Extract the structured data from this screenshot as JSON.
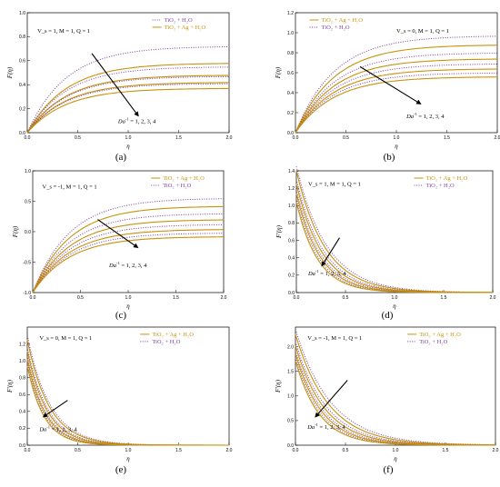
{
  "colors": {
    "solid": "#c8920a",
    "dotted": "#7c3fa0",
    "arrow": "#000000"
  },
  "chart_data": [
    {
      "type": "line",
      "panel_label": "(a)",
      "xlabel": "η",
      "ylabel": "F(η)",
      "xlim": [
        0,
        2
      ],
      "ylim": [
        0,
        1
      ],
      "xticks": [
        "0.0",
        "0.5",
        "1.0",
        "1.5",
        "2.0"
      ],
      "yticks": [
        "0.0",
        "0.2",
        "0.4",
        "0.6",
        "0.8",
        "1.0"
      ],
      "params": "V_s = 1, M = 1, Q = 1",
      "arrow_label": "Da^-1 = 1, 2, 3, 4",
      "legend": [
        "TiO₂ + H₂O",
        "TiO₂ + Ag + H₂O"
      ],
      "legend_pos": "top-right",
      "curve_kind": "increasing",
      "series": [
        {
          "style": "dotted",
          "f0": 0,
          "finf": 0.72
        },
        {
          "style": "solid",
          "f0": 0,
          "finf": 0.58
        },
        {
          "style": "dotted",
          "f0": 0,
          "finf": 0.55
        },
        {
          "style": "solid",
          "f0": 0,
          "finf": 0.48
        },
        {
          "style": "dotted",
          "f0": 0,
          "finf": 0.47
        },
        {
          "style": "solid",
          "f0": 0,
          "finf": 0.42
        },
        {
          "style": "dotted",
          "f0": 0,
          "finf": 0.41
        },
        {
          "style": "solid",
          "f0": 0,
          "finf": 0.37
        }
      ]
    },
    {
      "type": "line",
      "panel_label": "(b)",
      "xlabel": "η",
      "ylabel": "F(η)",
      "xlim": [
        0,
        2
      ],
      "ylim": [
        0,
        1.2
      ],
      "xticks": [
        "0.0",
        "0.5",
        "1.0",
        "1.5",
        "2.0"
      ],
      "yticks": [
        "0.0",
        "0.2",
        "0.4",
        "0.6",
        "0.8",
        "1.0",
        "1.2"
      ],
      "params": "V_s = 0, M = 1, Q = 1",
      "arrow_label": "Da^-1 = 1, 2, 3, 4",
      "legend": [
        "TiO₂ + Ag + H₂O",
        "TiO₂ + H₂O"
      ],
      "legend_pos": "top-left",
      "curve_kind": "increasing",
      "series": [
        {
          "style": "dotted",
          "f0": 0,
          "finf": 0.97
        },
        {
          "style": "solid",
          "f0": 0,
          "finf": 0.88
        },
        {
          "style": "dotted",
          "f0": 0,
          "finf": 0.8
        },
        {
          "style": "solid",
          "f0": 0,
          "finf": 0.74
        },
        {
          "style": "dotted",
          "f0": 0,
          "finf": 0.69
        },
        {
          "style": "solid",
          "f0": 0,
          "finf": 0.64
        },
        {
          "style": "dotted",
          "f0": 0,
          "finf": 0.6
        },
        {
          "style": "solid",
          "f0": 0,
          "finf": 0.56
        }
      ]
    },
    {
      "type": "line",
      "panel_label": "(c)",
      "xlabel": "η",
      "ylabel": "F(η)",
      "xlim": [
        0,
        2
      ],
      "ylim": [
        -1,
        1
      ],
      "xticks": [
        "0.0",
        "0.5",
        "1.0",
        "1.5",
        "2.0"
      ],
      "yticks": [
        "-1.0",
        "-0.5",
        "0.0",
        "0.5",
        "1.0"
      ],
      "params": "V_s = -1, M = 1, Q = 1",
      "arrow_label": "Da^-1 = 1, 2, 3, 4",
      "legend": [
        "TiO₂ + Ag + H₂O",
        "TiO₂ + H₂O"
      ],
      "legend_pos": "top-right",
      "curve_kind": "increasing",
      "series": [
        {
          "style": "dotted",
          "f0": -1,
          "finf": 0.55
        },
        {
          "style": "solid",
          "f0": -1,
          "finf": 0.42
        },
        {
          "style": "dotted",
          "f0": -1,
          "finf": 0.3
        },
        {
          "style": "solid",
          "f0": -1,
          "finf": 0.2
        },
        {
          "style": "dotted",
          "f0": -1,
          "finf": 0.12
        },
        {
          "style": "solid",
          "f0": -1,
          "finf": 0.04
        },
        {
          "style": "dotted",
          "f0": -1,
          "finf": -0.02
        },
        {
          "style": "solid",
          "f0": -1,
          "finf": -0.08
        }
      ]
    },
    {
      "type": "line",
      "panel_label": "(d)",
      "xlabel": "η",
      "ylabel": "F′(η)",
      "xlim": [
        0,
        2
      ],
      "ylim": [
        0,
        1.4
      ],
      "xticks": [
        "0.0",
        "0.5",
        "1.0",
        "1.5",
        "2.0"
      ],
      "yticks": [
        "0.0",
        "0.2",
        "0.4",
        "0.6",
        "0.8",
        "1.0",
        "1.2",
        "1.4"
      ],
      "params": "V_s = 1, M = 1, Q = 1",
      "arrow_label": "Da^-1 = 1, 2, 3, 4",
      "legend": [
        "TiO₂ + Ag + H₂O",
        "TiO₂ + H₂O"
      ],
      "legend_pos": "top-right",
      "curve_kind": "decreasing",
      "series": [
        {
          "style": "dotted",
          "f0": 1.45,
          "rate": 3.2
        },
        {
          "style": "solid",
          "f0": 1.4,
          "rate": 3.4
        },
        {
          "style": "dotted",
          "f0": 1.3,
          "rate": 3.6
        },
        {
          "style": "solid",
          "f0": 1.25,
          "rate": 3.8
        },
        {
          "style": "dotted",
          "f0": 1.18,
          "rate": 4.0
        },
        {
          "style": "solid",
          "f0": 1.14,
          "rate": 4.2
        },
        {
          "style": "dotted",
          "f0": 1.08,
          "rate": 4.4
        },
        {
          "style": "solid",
          "f0": 1.04,
          "rate": 4.6
        }
      ]
    },
    {
      "type": "line",
      "panel_label": "(e)",
      "xlabel": "η",
      "ylabel": "F′(η)",
      "xlim": [
        0,
        2
      ],
      "ylim": [
        0,
        1.4
      ],
      "xticks": [
        "0.0",
        "0.5",
        "1.0",
        "1.5",
        "2.0"
      ],
      "yticks": [
        "0.0",
        "0.2",
        "0.4",
        "0.6",
        "0.8",
        "1.0",
        "1.2"
      ],
      "params": "V_s = 0, M = 1, Q = 1",
      "arrow_label": "Da^-1 = 1, 2, 3, 4",
      "legend": [
        "TiO₂ + Ag + H₂O",
        "TiO₂ + H₂O"
      ],
      "legend_pos": "top-right",
      "curve_kind": "decreasing",
      "series": [
        {
          "style": "dotted",
          "f0": 1.3,
          "rate": 4.4
        },
        {
          "style": "solid",
          "f0": 1.25,
          "rate": 4.6
        },
        {
          "style": "dotted",
          "f0": 1.16,
          "rate": 4.9
        },
        {
          "style": "solid",
          "f0": 1.12,
          "rate": 5.1
        },
        {
          "style": "dotted",
          "f0": 1.06,
          "rate": 5.4
        },
        {
          "style": "solid",
          "f0": 1.02,
          "rate": 5.6
        },
        {
          "style": "dotted",
          "f0": 0.98,
          "rate": 5.9
        },
        {
          "style": "solid",
          "f0": 0.94,
          "rate": 6.1
        }
      ]
    },
    {
      "type": "line",
      "panel_label": "(f)",
      "xlabel": "η",
      "ylabel": "F′(η)",
      "xlim": [
        0,
        2
      ],
      "ylim": [
        0,
        2.4
      ],
      "xticks": [
        "0.0",
        "0.5",
        "1.0",
        "1.5",
        "2.0"
      ],
      "yticks": [
        "0.0",
        "0.5",
        "1.0",
        "1.5",
        "2.0"
      ],
      "params": "V_s = -1, M = 1, Q = 1",
      "arrow_label": "Da^-1 = 1, 2, 3, 4",
      "legend": [
        "TiO₂ + Ag + H₂O",
        "TiO₂ + H₂O"
      ],
      "legend_pos": "top-right",
      "curve_kind": "decreasing",
      "series": [
        {
          "style": "dotted",
          "f0": 2.35,
          "rate": 2.8
        },
        {
          "style": "solid",
          "f0": 2.25,
          "rate": 3.0
        },
        {
          "style": "dotted",
          "f0": 2.1,
          "rate": 3.2
        },
        {
          "style": "solid",
          "f0": 2.02,
          "rate": 3.4
        },
        {
          "style": "dotted",
          "f0": 1.92,
          "rate": 3.6
        },
        {
          "style": "solid",
          "f0": 1.86,
          "rate": 3.8
        },
        {
          "style": "dotted",
          "f0": 1.78,
          "rate": 4.0
        },
        {
          "style": "solid",
          "f0": 1.72,
          "rate": 4.2
        }
      ]
    }
  ]
}
